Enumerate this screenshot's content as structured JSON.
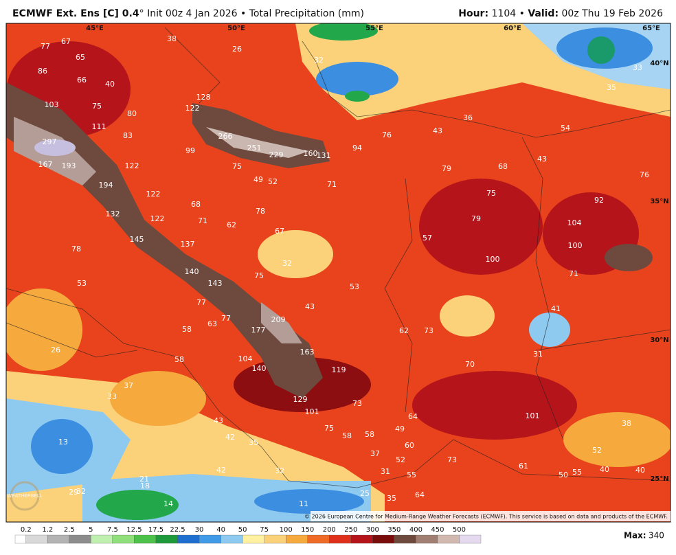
{
  "header": {
    "model": "ECMWF Ext. Ens [C] 0.4",
    "init": "° Init 00z 4 Jan 2026 • Total Precipitation (mm)",
    "hour_label": "Hour:",
    "hour": "1104 •",
    "valid_label": "Valid:",
    "valid": "00z Thu 19 Feb 2026"
  },
  "grid_labels": [
    "45°E",
    "50°E",
    "55°E",
    "60°E",
    "65°E",
    "40°N",
    "35°N",
    "30°N",
    "25°N"
  ],
  "map_labels": [
    "77",
    "67",
    "38",
    "26",
    "86",
    "65",
    "66",
    "40",
    "32",
    "33",
    "35",
    "103",
    "75",
    "80",
    "128",
    "122",
    "111",
    "83",
    "266",
    "251",
    "229",
    "160",
    "131",
    "94",
    "76",
    "43",
    "36",
    "54",
    "297",
    "167",
    "193",
    "122",
    "99",
    "75",
    "79",
    "68",
    "43",
    "76",
    "194",
    "49",
    "52",
    "71",
    "75",
    "122",
    "68",
    "92",
    "132",
    "122",
    "71",
    "62",
    "78",
    "79",
    "104",
    "67",
    "57",
    "145",
    "137",
    "100",
    "78",
    "100",
    "32",
    "140",
    "143",
    "75",
    "71",
    "53",
    "53",
    "77",
    "43",
    "41",
    "63",
    "77",
    "209",
    "58",
    "177",
    "62",
    "73",
    "26",
    "58",
    "104",
    "163",
    "31",
    "140",
    "119",
    "70",
    "37",
    "33",
    "129",
    "73",
    "101",
    "101",
    "64",
    "38",
    "43",
    "75",
    "58",
    "58",
    "49",
    "13",
    "42",
    "35",
    "60",
    "37",
    "52",
    "73",
    "61",
    "52",
    "42",
    "32",
    "31",
    "55",
    "50",
    "55",
    "40",
    "40",
    "21",
    "18",
    "29",
    "32",
    "25",
    "35",
    "64",
    "14",
    "11"
  ],
  "watermark": "WEATHERBELL",
  "copyright": "© 2026 European Centre for Medium-Range Weather Forecasts (ECMWF). This service is based on data and products of the ECMWF.",
  "colorbar": {
    "ticks": [
      "0.2",
      "1.2",
      "2.5",
      "5",
      "7.5",
      "12.5",
      "17.5",
      "22.5",
      "30",
      "40",
      "50",
      "75",
      "100",
      "150",
      "200",
      "250",
      "300",
      "350",
      "400",
      "450",
      "500"
    ],
    "max_label": "Max:",
    "max_value": "340"
  }
}
